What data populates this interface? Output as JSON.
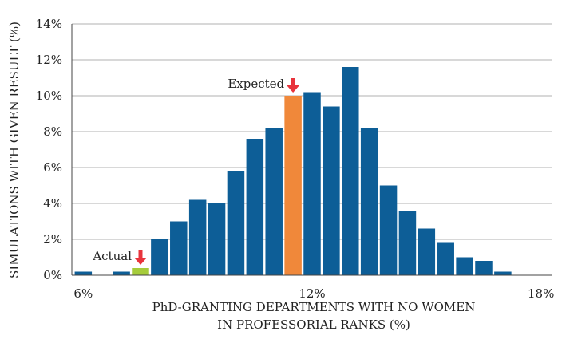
{
  "chart_data": {
    "type": "bar",
    "title": "",
    "ylabel": "SIMULATIONS WITH GIVEN RESULT (%)",
    "xlabel_lines": [
      "PhD-GRANTING DEPARTMENTS WITH NO WOMEN",
      "IN PROFESSORIAL RANKS (%)"
    ],
    "ylim": [
      0,
      14
    ],
    "yticks": [
      0,
      2,
      4,
      6,
      8,
      10,
      12,
      14
    ],
    "ytick_labels": [
      "0%",
      "2%",
      "4%",
      "6%",
      "8%",
      "10%",
      "12%",
      "14%"
    ],
    "xlim": [
      6,
      18
    ],
    "xticks": [
      6,
      12,
      18
    ],
    "xtick_labels": [
      "6%",
      "12%",
      "18%"
    ],
    "bar_width": 0.45,
    "x": [
      6.0,
      6.5,
      7.0,
      7.5,
      8.0,
      8.5,
      9.0,
      9.5,
      10.0,
      10.5,
      11.0,
      11.5,
      12.0,
      12.5,
      13.0,
      13.5,
      14.0,
      14.5,
      15.0,
      15.5,
      16.0,
      16.5,
      17.0,
      17.5,
      18.0
    ],
    "values": [
      0.2,
      0.0,
      0.2,
      0.4,
      2.0,
      3.0,
      4.2,
      4.0,
      5.8,
      7.6,
      8.2,
      10.0,
      10.2,
      9.4,
      11.6,
      8.2,
      5.0,
      3.6,
      2.6,
      1.8,
      1.0,
      0.8,
      0.2,
      0.0,
      0.0
    ],
    "colors": {
      "default": "#0d5e97",
      "actual": "#a6cc3b",
      "expected": "#f0883a",
      "arrow": "#e8343c",
      "grid": "#b0b0b0",
      "axis": "#444444"
    },
    "highlights": [
      {
        "x": 7.5,
        "label": "Actual",
        "role": "actual"
      },
      {
        "x": 11.5,
        "label": "Expected",
        "role": "expected"
      }
    ]
  }
}
